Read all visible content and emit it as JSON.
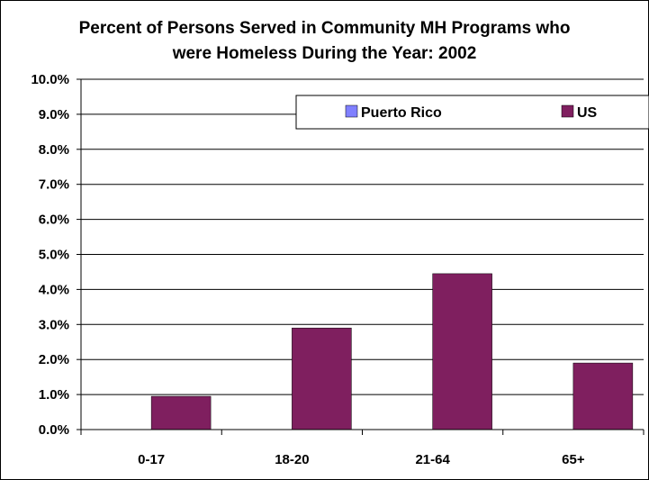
{
  "chart_data": {
    "type": "bar",
    "title_line1": "Percent of Persons Served in Community MH Programs who",
    "title_line2": "were Homeless During the Year: 2002",
    "categories": [
      "0-17",
      "18-20",
      "21-64",
      "65+"
    ],
    "series": [
      {
        "name": "Puerto Rico",
        "color": "#8080ff",
        "values": [
          0,
          0,
          0,
          0
        ]
      },
      {
        "name": "US",
        "color": "#7f1f5f",
        "values": [
          0.95,
          2.9,
          4.45,
          1.9
        ]
      }
    ],
    "ylim": [
      0,
      10
    ],
    "yticks": [
      "0.0%",
      "1.0%",
      "2.0%",
      "3.0%",
      "4.0%",
      "5.0%",
      "6.0%",
      "7.0%",
      "8.0%",
      "9.0%",
      "10.0%"
    ],
    "grid": true,
    "legend_position": "top-right"
  }
}
